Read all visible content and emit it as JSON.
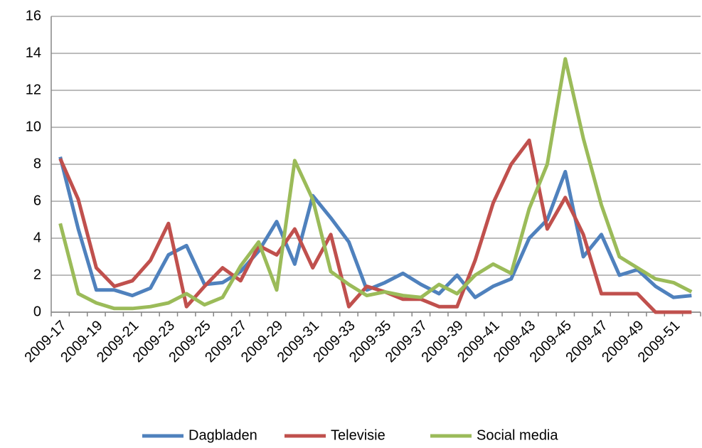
{
  "chart_data": {
    "type": "line",
    "categories": [
      "2009-17",
      null,
      "2009-19",
      null,
      "2009-21",
      null,
      "2009-23",
      null,
      "2009-25",
      null,
      "2009-27",
      null,
      "2009-29",
      null,
      "2009-31",
      null,
      "2009-33",
      null,
      "2009-35",
      null,
      "2009-37",
      null,
      "2009-39",
      null,
      "2009-41",
      null,
      "2009-43",
      null,
      "2009-45",
      null,
      "2009-47",
      null,
      "2009-49",
      null,
      "2009-51",
      null
    ],
    "series": [
      {
        "name": "Dagbladen",
        "color": "#4f81bd",
        "values": [
          8.4,
          4.5,
          1.2,
          1.2,
          0.9,
          1.3,
          3.1,
          3.6,
          1.5,
          1.6,
          2.2,
          3.3,
          4.9,
          2.6,
          6.3,
          5.1,
          3.8,
          1.2,
          1.6,
          2.1,
          1.5,
          1.0,
          2.0,
          0.8,
          1.4,
          1.8,
          4.0,
          5.0,
          7.6,
          3.0,
          4.2,
          2.0,
          2.3,
          1.4,
          0.8,
          0.9
        ]
      },
      {
        "name": "Televisie",
        "color": "#c0504d",
        "values": [
          8.3,
          6.1,
          2.4,
          1.4,
          1.7,
          2.8,
          4.8,
          0.3,
          1.4,
          2.4,
          1.7,
          3.6,
          3.1,
          4.5,
          2.4,
          4.2,
          0.3,
          1.4,
          1.1,
          0.7,
          0.7,
          0.3,
          0.3,
          2.8,
          5.9,
          8.0,
          9.3,
          4.5,
          6.2,
          4.2,
          1.0,
          1.0,
          1.0,
          0,
          0,
          0
        ]
      },
      {
        "name": "Social media",
        "color": "#9bbb59",
        "values": [
          4.8,
          1.0,
          0.5,
          0.2,
          0.2,
          0.3,
          0.5,
          1.0,
          0.4,
          0.8,
          2.5,
          3.8,
          1.2,
          8.2,
          6.1,
          2.2,
          1.5,
          0.9,
          1.1,
          0.9,
          0.8,
          1.5,
          1.0,
          2.0,
          2.6,
          2.1,
          5.6,
          8.0,
          13.7,
          9.4,
          5.8,
          3.0,
          2.4,
          1.8,
          1.6,
          1.1
        ]
      }
    ],
    "ylim": [
      0,
      16
    ],
    "yticks": [
      0,
      2,
      4,
      6,
      8,
      10,
      12,
      14,
      16
    ],
    "grid": true,
    "legend": "bottom"
  }
}
